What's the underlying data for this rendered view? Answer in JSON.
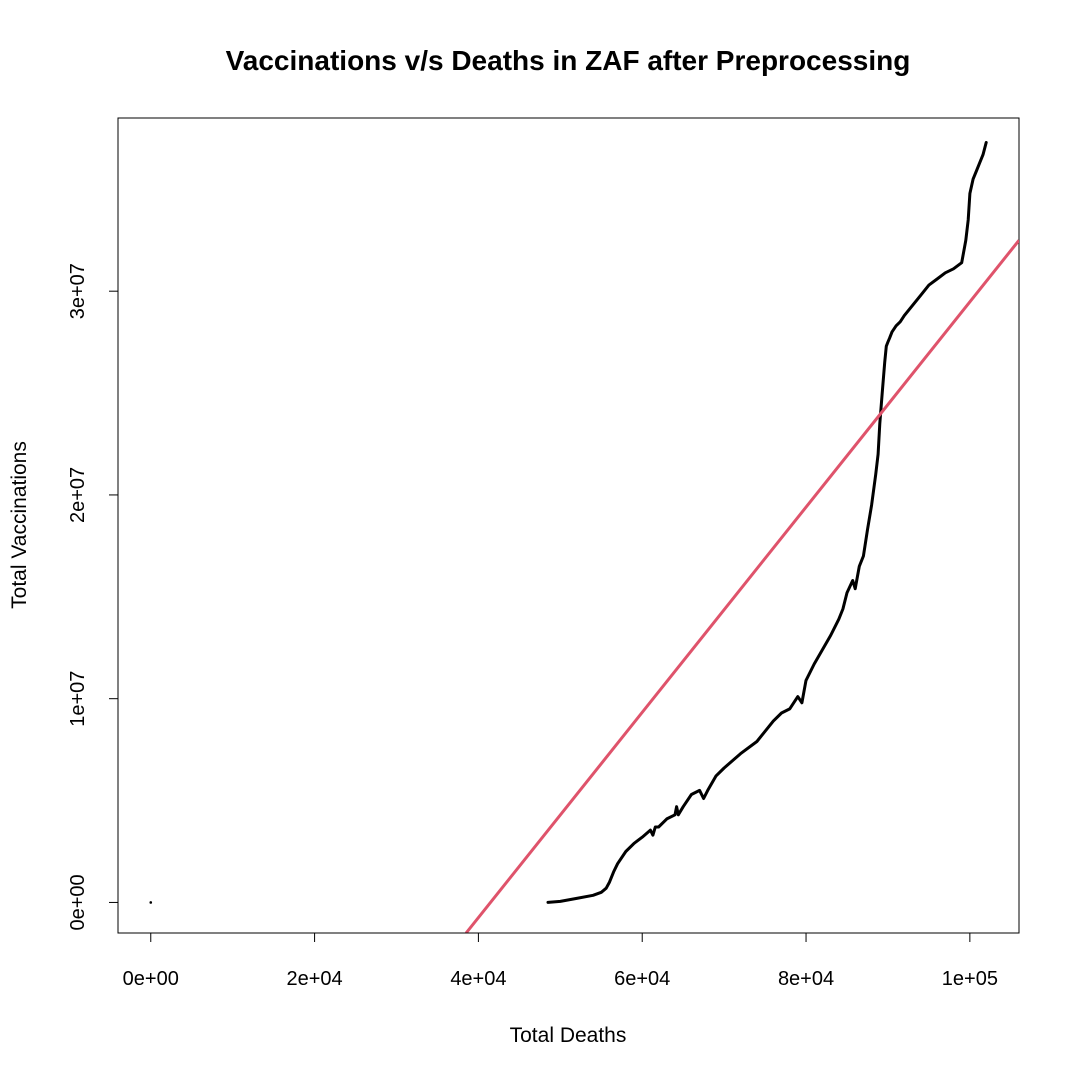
{
  "chart_data": {
    "type": "line",
    "title": "Vaccinations v/s Deaths in ZAF after Preprocessing",
    "xlabel": "Total Deaths",
    "ylabel": "Total Vaccinations",
    "xlim": [
      -4000,
      106000
    ],
    "ylim": [
      -1500000,
      38500000
    ],
    "grid": false,
    "xticks": [
      {
        "value": 0,
        "label": "0e+00"
      },
      {
        "value": 20000,
        "label": "2e+04"
      },
      {
        "value": 40000,
        "label": "4e+04"
      },
      {
        "value": 60000,
        "label": "6e+04"
      },
      {
        "value": 80000,
        "label": "8e+04"
      },
      {
        "value": 100000,
        "label": "1e+05"
      }
    ],
    "yticks": [
      {
        "value": 0,
        "label": "0e+00"
      },
      {
        "value": 10000000,
        "label": "1e+07"
      },
      {
        "value": 20000000,
        "label": "2e+07"
      },
      {
        "value": 30000000,
        "label": "3e+07"
      }
    ],
    "series": [
      {
        "color": "#000000",
        "x": [
          0,
          48500,
          50000,
          52000,
          54000,
          55000,
          55600,
          56000,
          56500,
          57000,
          58000,
          59000,
          60000,
          61000,
          61300,
          61600,
          62000,
          63000,
          64000,
          64200,
          64400,
          65000,
          66000,
          67000,
          67500,
          68000,
          69000,
          70000,
          72000,
          74000,
          76000,
          77000,
          78000,
          79000,
          79500,
          80000,
          81000,
          82000,
          83000,
          84000,
          84500,
          85000,
          85700,
          86000,
          86500,
          87000,
          87500,
          88000,
          88500,
          88800,
          89000,
          89300,
          89600,
          89800,
          90000,
          90200,
          90500,
          91000,
          91500,
          92000,
          93000,
          94000,
          95000,
          96000,
          97000,
          98000,
          99000,
          99500,
          99800,
          100000,
          100400,
          100800,
          101200,
          101600,
          102000
        ],
        "y": [
          0,
          0,
          50000,
          200000,
          350000,
          500000,
          700000,
          1000000,
          1500000,
          1900000,
          2500000,
          2900000,
          3200000,
          3550000,
          3300000,
          3700000,
          3700000,
          4100000,
          4300000,
          4700000,
          4300000,
          4700000,
          5300000,
          5500000,
          5100000,
          5500000,
          6200000,
          6600000,
          7300000,
          7900000,
          8900000,
          9300000,
          9500000,
          10100000,
          9800000,
          10900000,
          11700000,
          12400000,
          13100000,
          13900000,
          14400000,
          15200000,
          15800000,
          15400000,
          16500000,
          17000000,
          18300000,
          19500000,
          21000000,
          22000000,
          23500000,
          25000000,
          26500000,
          27300000,
          27500000,
          27700000,
          28000000,
          28300000,
          28500000,
          28800000,
          29300000,
          29800000,
          30300000,
          30600000,
          30900000,
          31100000,
          31400000,
          32500000,
          33500000,
          34800000,
          35500000,
          35900000,
          36300000,
          36700000,
          37300000
        ]
      },
      {
        "color": "#DF536B",
        "x": [
          38500,
          106000
        ],
        "y": [
          -1500000,
          32500000
        ]
      }
    ]
  }
}
